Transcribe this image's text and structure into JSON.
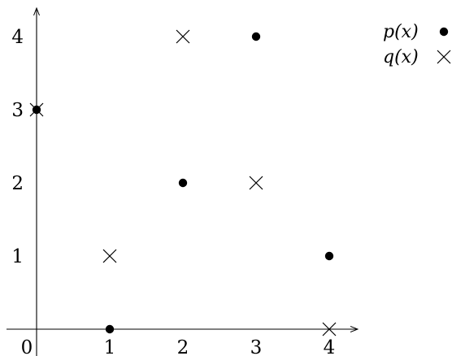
{
  "chart_data": {
    "type": "scatter",
    "title": "",
    "xlabel": "",
    "ylabel": "",
    "xlim": [
      0,
      4
    ],
    "ylim": [
      0,
      4
    ],
    "x_ticks": [
      "0",
      "1",
      "2",
      "3",
      "4"
    ],
    "y_ticks": [
      "1",
      "2",
      "3",
      "4"
    ],
    "grid": false,
    "legend_position": "top-right, outside plot",
    "series": [
      {
        "name": "p(x)",
        "marker": "filled-circle",
        "color": "#000000",
        "x": [
          0,
          1,
          2,
          3,
          4
        ],
        "y": [
          3,
          0,
          2,
          4,
          1
        ]
      },
      {
        "name": "q(x)",
        "marker": "cross",
        "color": "#000000",
        "x": [
          0,
          1,
          2,
          3,
          4
        ],
        "y": [
          3,
          1,
          4,
          2,
          0
        ]
      }
    ]
  }
}
